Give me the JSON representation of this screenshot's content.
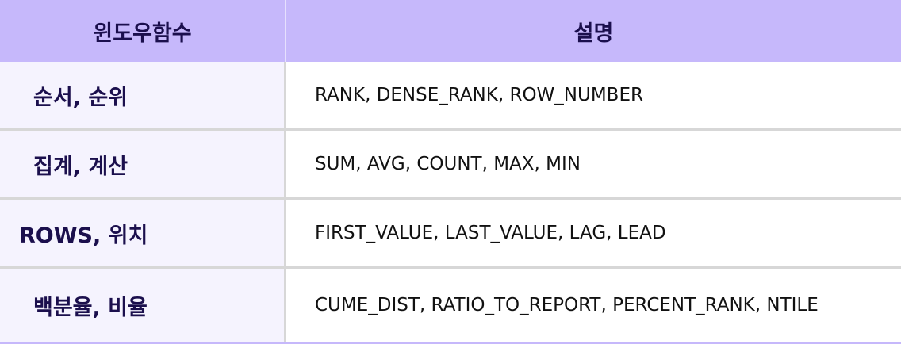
{
  "header": {
    "col1": "윈도우함수",
    "col2": "설명"
  },
  "rows": [
    {
      "label": "순서, 순위",
      "desc": "RANK, DENSE_RANK, ROW_NUMBER"
    },
    {
      "label": "집계, 계산",
      "desc": "SUM, AVG, COUNT, MAX, MIN"
    },
    {
      "label": "ROWS, 위치",
      "desc": "FIRST_VALUE, LAST_VALUE, LAG, LEAD"
    },
    {
      "label": "백분율, 비율",
      "desc": "CUME_DIST, RATIO_TO_REPORT, PERCENT_RANK, NTILE"
    }
  ],
  "colors": {
    "header_bg": "#c6b8fb",
    "label_bg": "#f5f3fe",
    "label_text": "#1b0f4d",
    "border": "#d7d7d7"
  }
}
